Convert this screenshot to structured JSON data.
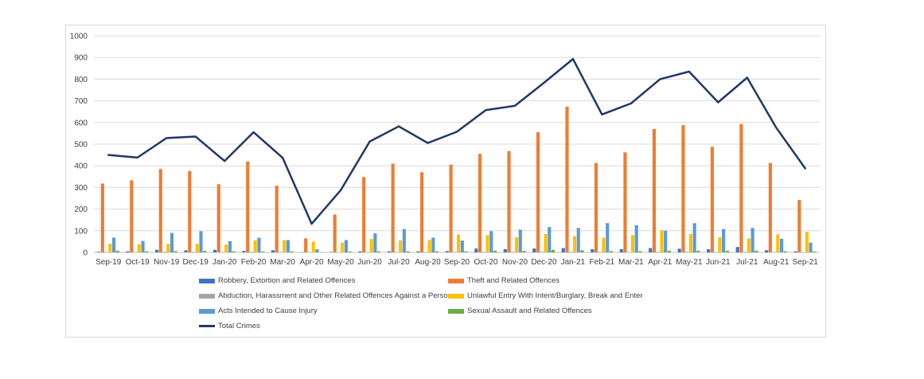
{
  "chart_data": {
    "type": "bar",
    "title": "",
    "xlabel": "",
    "ylabel": "",
    "ylim": [
      0,
      1000
    ],
    "yticks": [
      0,
      100,
      200,
      300,
      400,
      500,
      600,
      700,
      800,
      900,
      1000
    ],
    "grid": true,
    "legend_position": "bottom",
    "categories": [
      "Sep-19",
      "Oct-19",
      "Nov-19",
      "Dec-19",
      "Jan-20",
      "Feb-20",
      "Mar-20",
      "Apr-20",
      "May-20",
      "Jun-20",
      "Jul-20",
      "Aug-20",
      "Sep-20",
      "Oct-20",
      "Nov-20",
      "Dec-20",
      "Jan-21",
      "Feb-21",
      "Mar-21",
      "Apr-21",
      "May-21",
      "Jun-21",
      "Jul-21",
      "Aug-21",
      "Sep-21"
    ],
    "series": [
      {
        "name": "Robbery, Extortion and Related Offences",
        "type": "bar",
        "color": "#4472c4",
        "values": [
          3,
          5,
          12,
          10,
          12,
          7,
          10,
          1,
          2,
          5,
          5,
          5,
          6,
          18,
          15,
          18,
          20,
          15,
          15,
          20,
          17,
          15,
          25,
          10,
          5
        ]
      },
      {
        "name": "Theft and Related Offences",
        "type": "bar",
        "color": "#ed7d31",
        "values": [
          318,
          333,
          385,
          376,
          315,
          420,
          308,
          65,
          175,
          348,
          410,
          370,
          405,
          455,
          468,
          555,
          673,
          413,
          462,
          570,
          588,
          488,
          593,
          413,
          242
        ]
      },
      {
        "name": "Abduction, Harassment and Other Related Offences Against a Person",
        "type": "bar",
        "color": "#a5a5a5",
        "values": [
          2,
          2,
          3,
          3,
          2,
          3,
          2,
          1,
          1,
          2,
          2,
          2,
          2,
          3,
          3,
          3,
          3,
          2,
          2,
          3,
          3,
          2,
          3,
          2,
          2
        ]
      },
      {
        "name": "Unlawful Entry With Intent/Burglary, Break and Enter",
        "type": "bar",
        "color": "#ffc000",
        "values": [
          40,
          38,
          40,
          40,
          36,
          55,
          57,
          50,
          45,
          62,
          55,
          57,
          83,
          80,
          70,
          85,
          75,
          68,
          80,
          102,
          85,
          70,
          65,
          83,
          95
        ]
      },
      {
        "name": "Acts Intended to Cause Injury",
        "type": "bar",
        "color": "#5b9bd5",
        "values": [
          68,
          53,
          90,
          98,
          52,
          68,
          57,
          15,
          57,
          88,
          108,
          68,
          55,
          98,
          105,
          117,
          113,
          135,
          125,
          100,
          135,
          108,
          113,
          63,
          45
        ]
      },
      {
        "name": "Sexual Assault and Related Offences",
        "type": "bar",
        "color": "#70ad47",
        "values": [
          8,
          5,
          6,
          7,
          5,
          4,
          5,
          2,
          4,
          5,
          5,
          5,
          5,
          8,
          7,
          12,
          10,
          6,
          6,
          8,
          8,
          8,
          8,
          5,
          4
        ]
      },
      {
        "name": "Total Crimes",
        "type": "line",
        "color": "#203864",
        "values": [
          450,
          438,
          528,
          535,
          422,
          555,
          437,
          132,
          287,
          512,
          582,
          505,
          557,
          657,
          677,
          783,
          893,
          637,
          688,
          800,
          835,
          693,
          807,
          576,
          388
        ]
      }
    ]
  },
  "colors": {
    "gridline": "#d9d9d9",
    "axis": "#bfbfbf",
    "text": "#404040"
  }
}
